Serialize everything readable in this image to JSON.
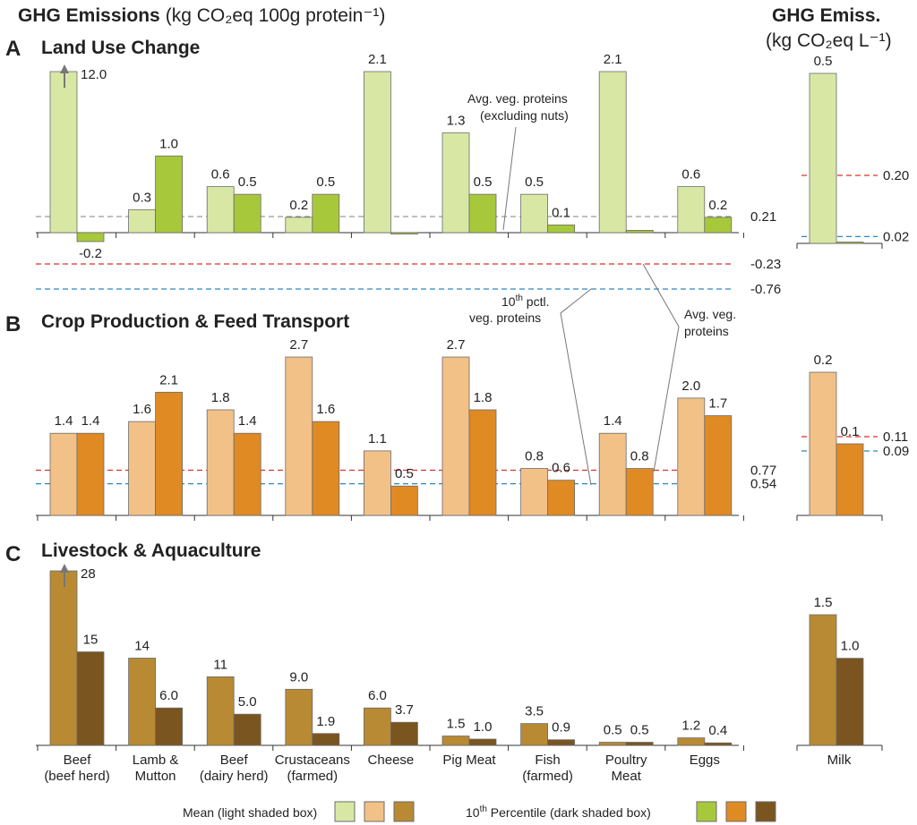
{
  "header": {
    "left_bold": "GHG Emissions",
    "left_rest": "(kg CO₂eq 100g protein⁻¹)",
    "right_bold": "GHG Emiss.",
    "right_rest": "(kg CO₂eq L⁻¹)"
  },
  "colors": {
    "A": {
      "mean": "#d8e8a4",
      "p10": "#a8c83c"
    },
    "B": {
      "mean": "#f2c188",
      "p10": "#e08a24"
    },
    "C": {
      "mean": "#b88a34",
      "p10": "#7a5520"
    },
    "red_line": "#d9312b",
    "blue_line": "#2e86c1",
    "gray_line": "#999999",
    "stroke": "#6b6b6b"
  },
  "categories": [
    {
      "line1": "Beef",
      "line2": "(beef herd)"
    },
    {
      "line1": "Lamb &",
      "line2": "Mutton"
    },
    {
      "line1": "Beef",
      "line2": "(dairy herd)"
    },
    {
      "line1": "Crustaceans",
      "line2": "(farmed)"
    },
    {
      "line1": "Cheese",
      "line2": ""
    },
    {
      "line1": "Pig Meat",
      "line2": ""
    },
    {
      "line1": "Fish",
      "line2": "(farmed)"
    },
    {
      "line1": "Poultry",
      "line2": "Meat"
    },
    {
      "line1": "Eggs",
      "line2": ""
    }
  ],
  "milk_label": "Milk",
  "annotations": {
    "avg_excl_nuts_1": "Avg. veg. proteins",
    "avg_excl_nuts_2": "(excluding nuts)",
    "pctl_1": "10",
    "pctl_sup": "th",
    "pctl_1b": " pctl.",
    "pctl_2": "veg. proteins",
    "avg_veg_1": "Avg. veg.",
    "avg_veg_2": "proteins"
  },
  "legend": {
    "mean_label": "Mean (light shaded box)",
    "p10_pre": "10",
    "p10_sup": "th",
    "p10_post": " Percentile (dark shaded box)"
  },
  "chart_data": [
    {
      "id": "A",
      "type": "bar",
      "letter": "A",
      "title": "Land Use Change",
      "categories": [
        "Beef (beef herd)",
        "Lamb & Mutton",
        "Beef (dairy herd)",
        "Crustaceans (farmed)",
        "Cheese",
        "Pig Meat",
        "Fish (farmed)",
        "Poultry Meat",
        "Eggs"
      ],
      "series": [
        {
          "name": "Mean",
          "values": [
            12.0,
            0.3,
            0.6,
            0.2,
            2.1,
            1.3,
            0.5,
            2.1,
            0.6
          ],
          "labels": [
            "12.0",
            "0.3",
            "0.6",
            "0.2",
            "2.1",
            "1.3",
            "0.5",
            "2.1",
            "0.6"
          ]
        },
        {
          "name": "10th Percentile",
          "values": [
            -0.2,
            1.0,
            0.5,
            0.5,
            0.0,
            0.5,
            0.1,
            0.03,
            0.2
          ],
          "labels": [
            "-0.2",
            "1.0",
            "0.5",
            "0.5",
            "",
            "0.5",
            "0.1",
            "",
            "0.2"
          ]
        }
      ],
      "reference_lines": [
        {
          "value": 0.21,
          "label": "0.21",
          "color": "gray"
        },
        {
          "value": -0.23,
          "label": "-0.23",
          "color": "red"
        },
        {
          "value": -0.76,
          "label": "-0.76",
          "color": "blue"
        }
      ],
      "clipped": [
        0
      ],
      "milk": {
        "mean": 0.5,
        "p10": 0.0,
        "mean_label": "0.5",
        "p10_label": "",
        "ref_lines": [
          {
            "value": 0.2,
            "label": "0.20",
            "color": "red"
          },
          {
            "value": 0.02,
            "label": "0.02",
            "color": "blue"
          }
        ]
      }
    },
    {
      "id": "B",
      "type": "bar",
      "letter": "B",
      "title": "Crop Production & Feed Transport",
      "categories": [
        "Beef (beef herd)",
        "Lamb & Mutton",
        "Beef (dairy herd)",
        "Crustaceans (farmed)",
        "Cheese",
        "Pig Meat",
        "Fish (farmed)",
        "Poultry Meat",
        "Eggs"
      ],
      "series": [
        {
          "name": "Mean",
          "values": [
            1.4,
            1.6,
            1.8,
            2.7,
            1.1,
            2.7,
            0.8,
            1.4,
            2.0
          ],
          "labels": [
            "1.4",
            "1.6",
            "1.8",
            "2.7",
            "1.1",
            "2.7",
            "0.8",
            "1.4",
            "2.0"
          ]
        },
        {
          "name": "10th Percentile",
          "values": [
            1.4,
            2.1,
            1.4,
            1.6,
            0.5,
            1.8,
            0.6,
            0.8,
            1.7
          ],
          "labels": [
            "1.4",
            "2.1",
            "1.4",
            "1.6",
            "0.5",
            "1.8",
            "0.6",
            "0.8",
            "1.7"
          ]
        }
      ],
      "reference_lines": [
        {
          "value": 0.77,
          "label": "0.77",
          "color": "red"
        },
        {
          "value": 0.54,
          "label": "0.54",
          "color": "blue"
        }
      ],
      "milk": {
        "mean": 0.2,
        "p10": 0.1,
        "mean_label": "0.2",
        "p10_label": "0.1",
        "ref_lines": [
          {
            "value": 0.11,
            "label": "0.11",
            "color": "red"
          },
          {
            "value": 0.09,
            "label": "0.09",
            "color": "blue"
          }
        ]
      }
    },
    {
      "id": "C",
      "type": "bar",
      "letter": "C",
      "title": "Livestock & Aquaculture",
      "categories": [
        "Beef (beef herd)",
        "Lamb & Mutton",
        "Beef (dairy herd)",
        "Crustaceans (farmed)",
        "Cheese",
        "Pig Meat",
        "Fish (farmed)",
        "Poultry Meat",
        "Eggs"
      ],
      "series": [
        {
          "name": "Mean",
          "values": [
            28,
            14,
            11,
            9.0,
            6.0,
            1.5,
            3.5,
            0.5,
            1.2
          ],
          "labels": [
            "28",
            "14",
            "11",
            "9.0",
            "6.0",
            "1.5",
            "3.5",
            "0.5",
            "1.2"
          ]
        },
        {
          "name": "10th Percentile",
          "values": [
            15,
            6.0,
            5.0,
            1.9,
            3.7,
            1.0,
            0.9,
            0.5,
            0.4
          ],
          "labels": [
            "15",
            "6.0",
            "5.0",
            "1.9",
            "3.7",
            "1.0",
            "0.9",
            "0.5",
            "0.4"
          ]
        }
      ],
      "reference_lines": [],
      "clipped": [
        0
      ],
      "milk": {
        "mean": 1.5,
        "p10": 1.0,
        "mean_label": "1.5",
        "p10_label": "1.0",
        "ref_lines": []
      }
    }
  ]
}
